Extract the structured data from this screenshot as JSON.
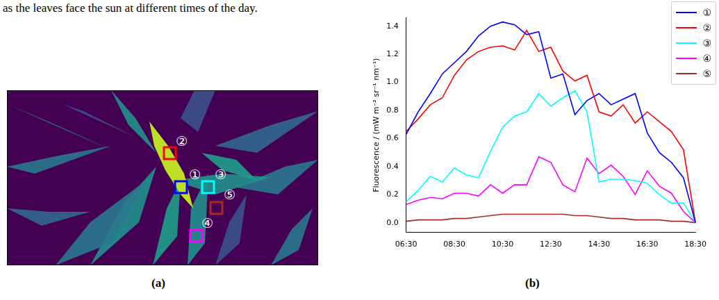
{
  "caption": "as the leaves face the sun at different times of the day.",
  "panel_labels": [
    "(a)",
    "(b)"
  ],
  "chart_data": {
    "type": "line",
    "categories": [
      "06:30",
      null,
      null,
      null,
      "08:30",
      null,
      null,
      null,
      "10:30",
      null,
      null,
      null,
      "12:30",
      null,
      null,
      null,
      "14:30",
      null,
      null,
      null,
      "16:30",
      null,
      null,
      null,
      "18:30"
    ],
    "ylabel": "Fluorescence / (mW m⁻² sr⁻¹ nm⁻¹)",
    "ylim": [
      -0.07,
      1.46
    ],
    "yticks": [
      {
        "value": 0,
        "label": "0.0"
      },
      0.2,
      0.4,
      0.6,
      0.8,
      {
        "value": 1,
        "label": "1.0"
      },
      1.2,
      1.4
    ],
    "grid": false,
    "legend": "upper right",
    "series": [
      {
        "name": "①",
        "color": "#0000ff",
        "values": [
          0.63,
          0.79,
          0.92,
          1.06,
          1.14,
          1.22,
          1.33,
          1.4,
          1.43,
          1.41,
          1.34,
          1.36,
          1.03,
          1.06,
          0.77,
          0.87,
          0.92,
          0.84,
          0.88,
          0.92,
          0.64,
          0.5,
          0.43,
          0.32,
          0.0
        ]
      },
      {
        "name": "②",
        "color": "#ff0000",
        "values": [
          0.65,
          0.74,
          0.84,
          0.89,
          1.05,
          1.16,
          1.22,
          1.25,
          1.26,
          1.23,
          1.37,
          1.22,
          1.25,
          1.08,
          1.01,
          1.05,
          0.79,
          0.76,
          0.84,
          0.71,
          0.79,
          0.72,
          0.65,
          0.52,
          0.0
        ]
      },
      {
        "name": "③",
        "color": "#00ffff",
        "values": [
          0.15,
          0.23,
          0.33,
          0.29,
          0.39,
          0.34,
          0.32,
          0.51,
          0.68,
          0.76,
          0.79,
          0.92,
          0.83,
          0.89,
          0.94,
          0.79,
          0.29,
          0.31,
          0.31,
          0.3,
          0.28,
          0.2,
          0.14,
          0.14,
          0.0
        ]
      },
      {
        "name": "④",
        "color": "#ff00ff",
        "values": [
          0.13,
          0.16,
          0.18,
          0.17,
          0.21,
          0.21,
          0.19,
          0.27,
          0.21,
          0.27,
          0.27,
          0.47,
          0.43,
          0.27,
          0.22,
          0.46,
          0.35,
          0.41,
          0.33,
          0.2,
          0.37,
          0.26,
          0.21,
          0.08,
          0.0
        ]
      },
      {
        "name": "⑤",
        "color": "#a52a2a",
        "values": [
          0.01,
          0.02,
          0.02,
          0.02,
          0.03,
          0.03,
          0.04,
          0.05,
          0.06,
          0.06,
          0.06,
          0.06,
          0.06,
          0.06,
          0.05,
          0.05,
          0.04,
          0.03,
          0.03,
          0.02,
          0.02,
          0.02,
          0.01,
          0.01,
          0.0
        ]
      }
    ]
  }
}
